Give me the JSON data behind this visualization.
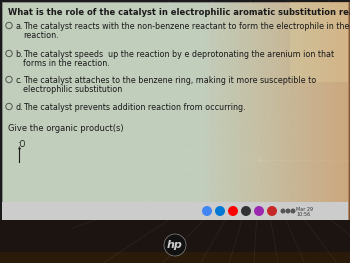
{
  "bg_outer": "#1a1a1a",
  "title": "What is the role of the catalyst in electrophilic aromatic substitution reactions of benzene?",
  "options": [
    {
      "label": "a.",
      "text1": "The catalyst reacts with the non-benzene reactant to form the electrophile in the",
      "text2": "reaction."
    },
    {
      "label": "b.",
      "text1": "The catalyst speeds  up the reaction by e deprotonating the arenium ion that",
      "text2": "forms in the reaction."
    },
    {
      "label": "c.",
      "text1": "The catalyst attaches to the benzene ring, making it more susceptible to",
      "text2": "electrophilic substitution"
    },
    {
      "label": "d.",
      "text1": "The catalyst prevents addition reaction from occurring.",
      "text2": ""
    }
  ],
  "give_text": "Give the organic product(s)",
  "title_fontsize": 6.0,
  "option_fontsize": 5.8,
  "give_fontsize": 6.0,
  "text_color": "#1a1a1a",
  "screen_bg": "#c2cebc",
  "taskbar_bg": "#d8d8d8",
  "laptop_bottom": "#2a2020"
}
